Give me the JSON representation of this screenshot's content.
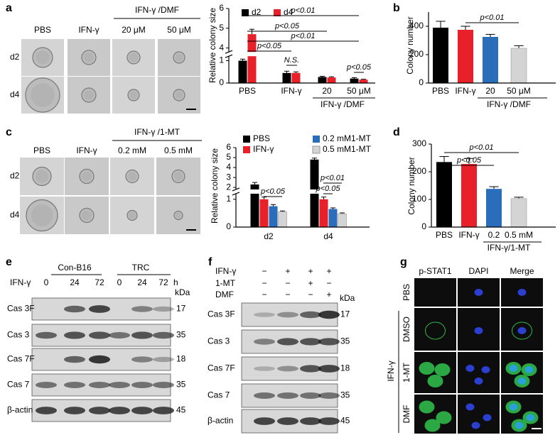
{
  "panels": {
    "a": {
      "label": "a",
      "columns": [
        "PBS",
        "IFN-γ",
        "20 μM",
        "50 μM"
      ],
      "group": "IFN-γ /DMF",
      "rows": [
        "d2",
        "d4"
      ]
    },
    "b": {
      "label": "b"
    },
    "c": {
      "label": "c",
      "columns": [
        "PBS",
        "IFN-γ",
        "0.2 mM",
        "0.5 mM"
      ],
      "group": "IFN-γ /1-MT",
      "rows": [
        "d2",
        "d4"
      ]
    },
    "d": {
      "label": "d"
    },
    "e": {
      "label": "e",
      "groups": [
        "Con-B16",
        "TRC"
      ],
      "treatment": "IFN-γ",
      "times": [
        "0",
        "24",
        "72",
        "0",
        "24",
        "72"
      ],
      "time_unit": "h",
      "unit_header": "kDa",
      "blots": [
        {
          "name": "Cas 3F",
          "kda": 17
        },
        {
          "name": "Cas 3",
          "kda": 35
        },
        {
          "name": "Cas 7F",
          "kda": 18
        },
        {
          "name": "Cas 7",
          "kda": 35
        },
        {
          "name": "β-actin",
          "kda": 45
        }
      ]
    },
    "f": {
      "label": "f",
      "conditions": [
        {
          "name": "IFN-γ",
          "signs": [
            "−",
            "+",
            "+",
            "+"
          ]
        },
        {
          "name": "1-MT",
          "signs": [
            "−",
            "−",
            "+",
            "−"
          ]
        },
        {
          "name": "DMF",
          "signs": [
            "−",
            "−",
            "−",
            "+"
          ]
        }
      ],
      "unit_header": "kDa",
      "blots": [
        {
          "name": "Cas 3F",
          "kda": 17
        },
        {
          "name": "Cas 3",
          "kda": 35
        },
        {
          "name": "Cas 7F",
          "kda": 18
        },
        {
          "name": "Cas 7",
          "kda": 35
        },
        {
          "name": "β-actin",
          "kda": 45
        }
      ]
    },
    "g": {
      "label": "g",
      "columns": [
        "p-STAT1",
        "DAPI",
        "Merge"
      ],
      "rows": [
        "PBS",
        "DMSO",
        "1-MT",
        "DMF"
      ],
      "group": "IFN-γ"
    }
  },
  "chart_data": [
    {
      "type": "bar",
      "ylabel": "Relative colony size",
      "categories": [
        "PBS",
        "IFN-γ",
        "20",
        "50 μM"
      ],
      "category_group": "IFN-γ /DMF",
      "series": [
        {
          "name": "d2",
          "color": "#000000",
          "values": [
            1.0,
            0.45,
            0.27,
            0.2
          ],
          "errors": [
            0.07,
            0.08,
            0.03,
            0.04
          ]
        },
        {
          "name": "d4",
          "color": "#e8202a",
          "values": [
            4.7,
            0.45,
            0.25,
            0.15
          ],
          "errors": [
            0.25,
            0.05,
            0.03,
            0.02
          ]
        }
      ],
      "ylim": [
        0,
        6
      ],
      "ybreak": [
        1.2,
        3.8
      ],
      "yticks": [
        0,
        1,
        4,
        5,
        6
      ],
      "annotations": [
        "p<0.01",
        "p<0.05",
        "p<0.01",
        "p<0.05",
        "N.S.",
        "p<0.05"
      ]
    },
    {
      "type": "bar",
      "ylabel": "Colony number",
      "categories": [
        "PBS",
        "IFN-γ",
        "20",
        "50 μM"
      ],
      "category_group": "IFN-γ /DMF",
      "values": [
        390,
        375,
        325,
        245
      ],
      "errors": [
        45,
        25,
        18,
        18
      ],
      "colors": [
        "#000000",
        "#e8202a",
        "#2a6ebb",
        "#d4d4d4"
      ],
      "ylim": [
        0,
        500
      ],
      "yticks": [
        0,
        200,
        400
      ],
      "annotations": [
        "p<0.01"
      ]
    },
    {
      "type": "bar",
      "ylabel": "Relative colony size",
      "categories": [
        "d2",
        "d4"
      ],
      "series": [
        {
          "name": "PBS",
          "color": "#000000",
          "values": [
            2.3,
            4.8
          ],
          "errors": [
            0.2,
            0.15
          ]
        },
        {
          "name": "IFN-γ",
          "color": "#e8202a",
          "values": [
            1.0,
            1.0
          ],
          "errors": [
            0.08,
            0.08
          ]
        },
        {
          "name": "0.2 mM1-MT",
          "color": "#2a6ebb",
          "values": [
            0.75,
            0.65
          ],
          "errors": [
            0.06,
            0.04
          ]
        },
        {
          "name": "0.5 mM1-MT",
          "color": "#d4d4d4",
          "values": [
            0.55,
            0.48
          ],
          "errors": [
            0.03,
            0.03
          ]
        }
      ],
      "ylim": [
        0,
        6
      ],
      "ybreak": [
        1.2,
        1.8
      ],
      "yticks": [
        0,
        1,
        2,
        3,
        4,
        5,
        6
      ],
      "annotations": [
        "p<0.05",
        "p<0.01",
        "p<0.05"
      ]
    },
    {
      "type": "bar",
      "ylabel": "Colony number",
      "categories": [
        "PBS",
        "IFN-γ",
        "0.2",
        "0.5 mM"
      ],
      "category_group": "IFN-γ/1-MT",
      "values": [
        235,
        228,
        138,
        103
      ],
      "errors": [
        20,
        20,
        8,
        5
      ],
      "colors": [
        "#000000",
        "#e8202a",
        "#2a6ebb",
        "#d4d4d4"
      ],
      "ylim": [
        0,
        300
      ],
      "yticks": [
        0,
        100,
        200,
        300
      ],
      "annotations": [
        "p<0.01",
        "p<0.05"
      ]
    }
  ]
}
